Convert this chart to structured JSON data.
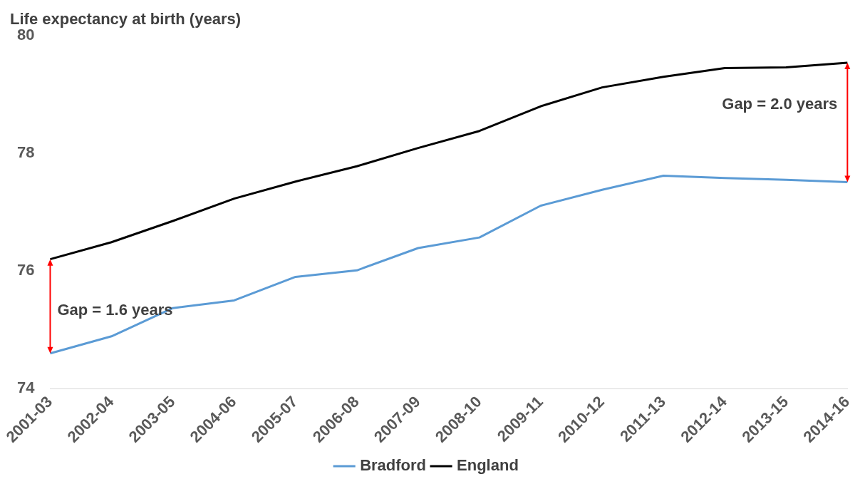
{
  "chart_data": {
    "type": "line",
    "ylabel": "Life expectancy at birth (years)",
    "categories": [
      "2001-03",
      "2002-04",
      "2003-05",
      "2004-06",
      "2005-07",
      "2006-08",
      "2007-09",
      "2008-10",
      "2009-11",
      "2010-12",
      "2011-13",
      "2012-14",
      "2013-15",
      "2014-16"
    ],
    "series": [
      {
        "name": "Bradford",
        "color": "#5b9bd5",
        "values": [
          74.6,
          74.89,
          75.37,
          75.5,
          75.9,
          76.01,
          76.39,
          76.57,
          77.11,
          77.38,
          77.62,
          77.58,
          77.55,
          77.51
        ]
      },
      {
        "name": "England",
        "color": "#000000",
        "values": [
          76.2,
          76.49,
          76.85,
          77.23,
          77.52,
          77.78,
          78.09,
          78.38,
          78.8,
          79.12,
          79.3,
          79.45,
          79.46,
          79.54
        ]
      }
    ],
    "ylim": [
      74,
      80
    ],
    "yticks": [
      74,
      76,
      78,
      80
    ],
    "grid": false,
    "legend": "bottom",
    "marker": "none",
    "line_style": "solid",
    "annotations": [
      "Gap = 1.6 years",
      "Gap = 2.0 years"
    ]
  }
}
